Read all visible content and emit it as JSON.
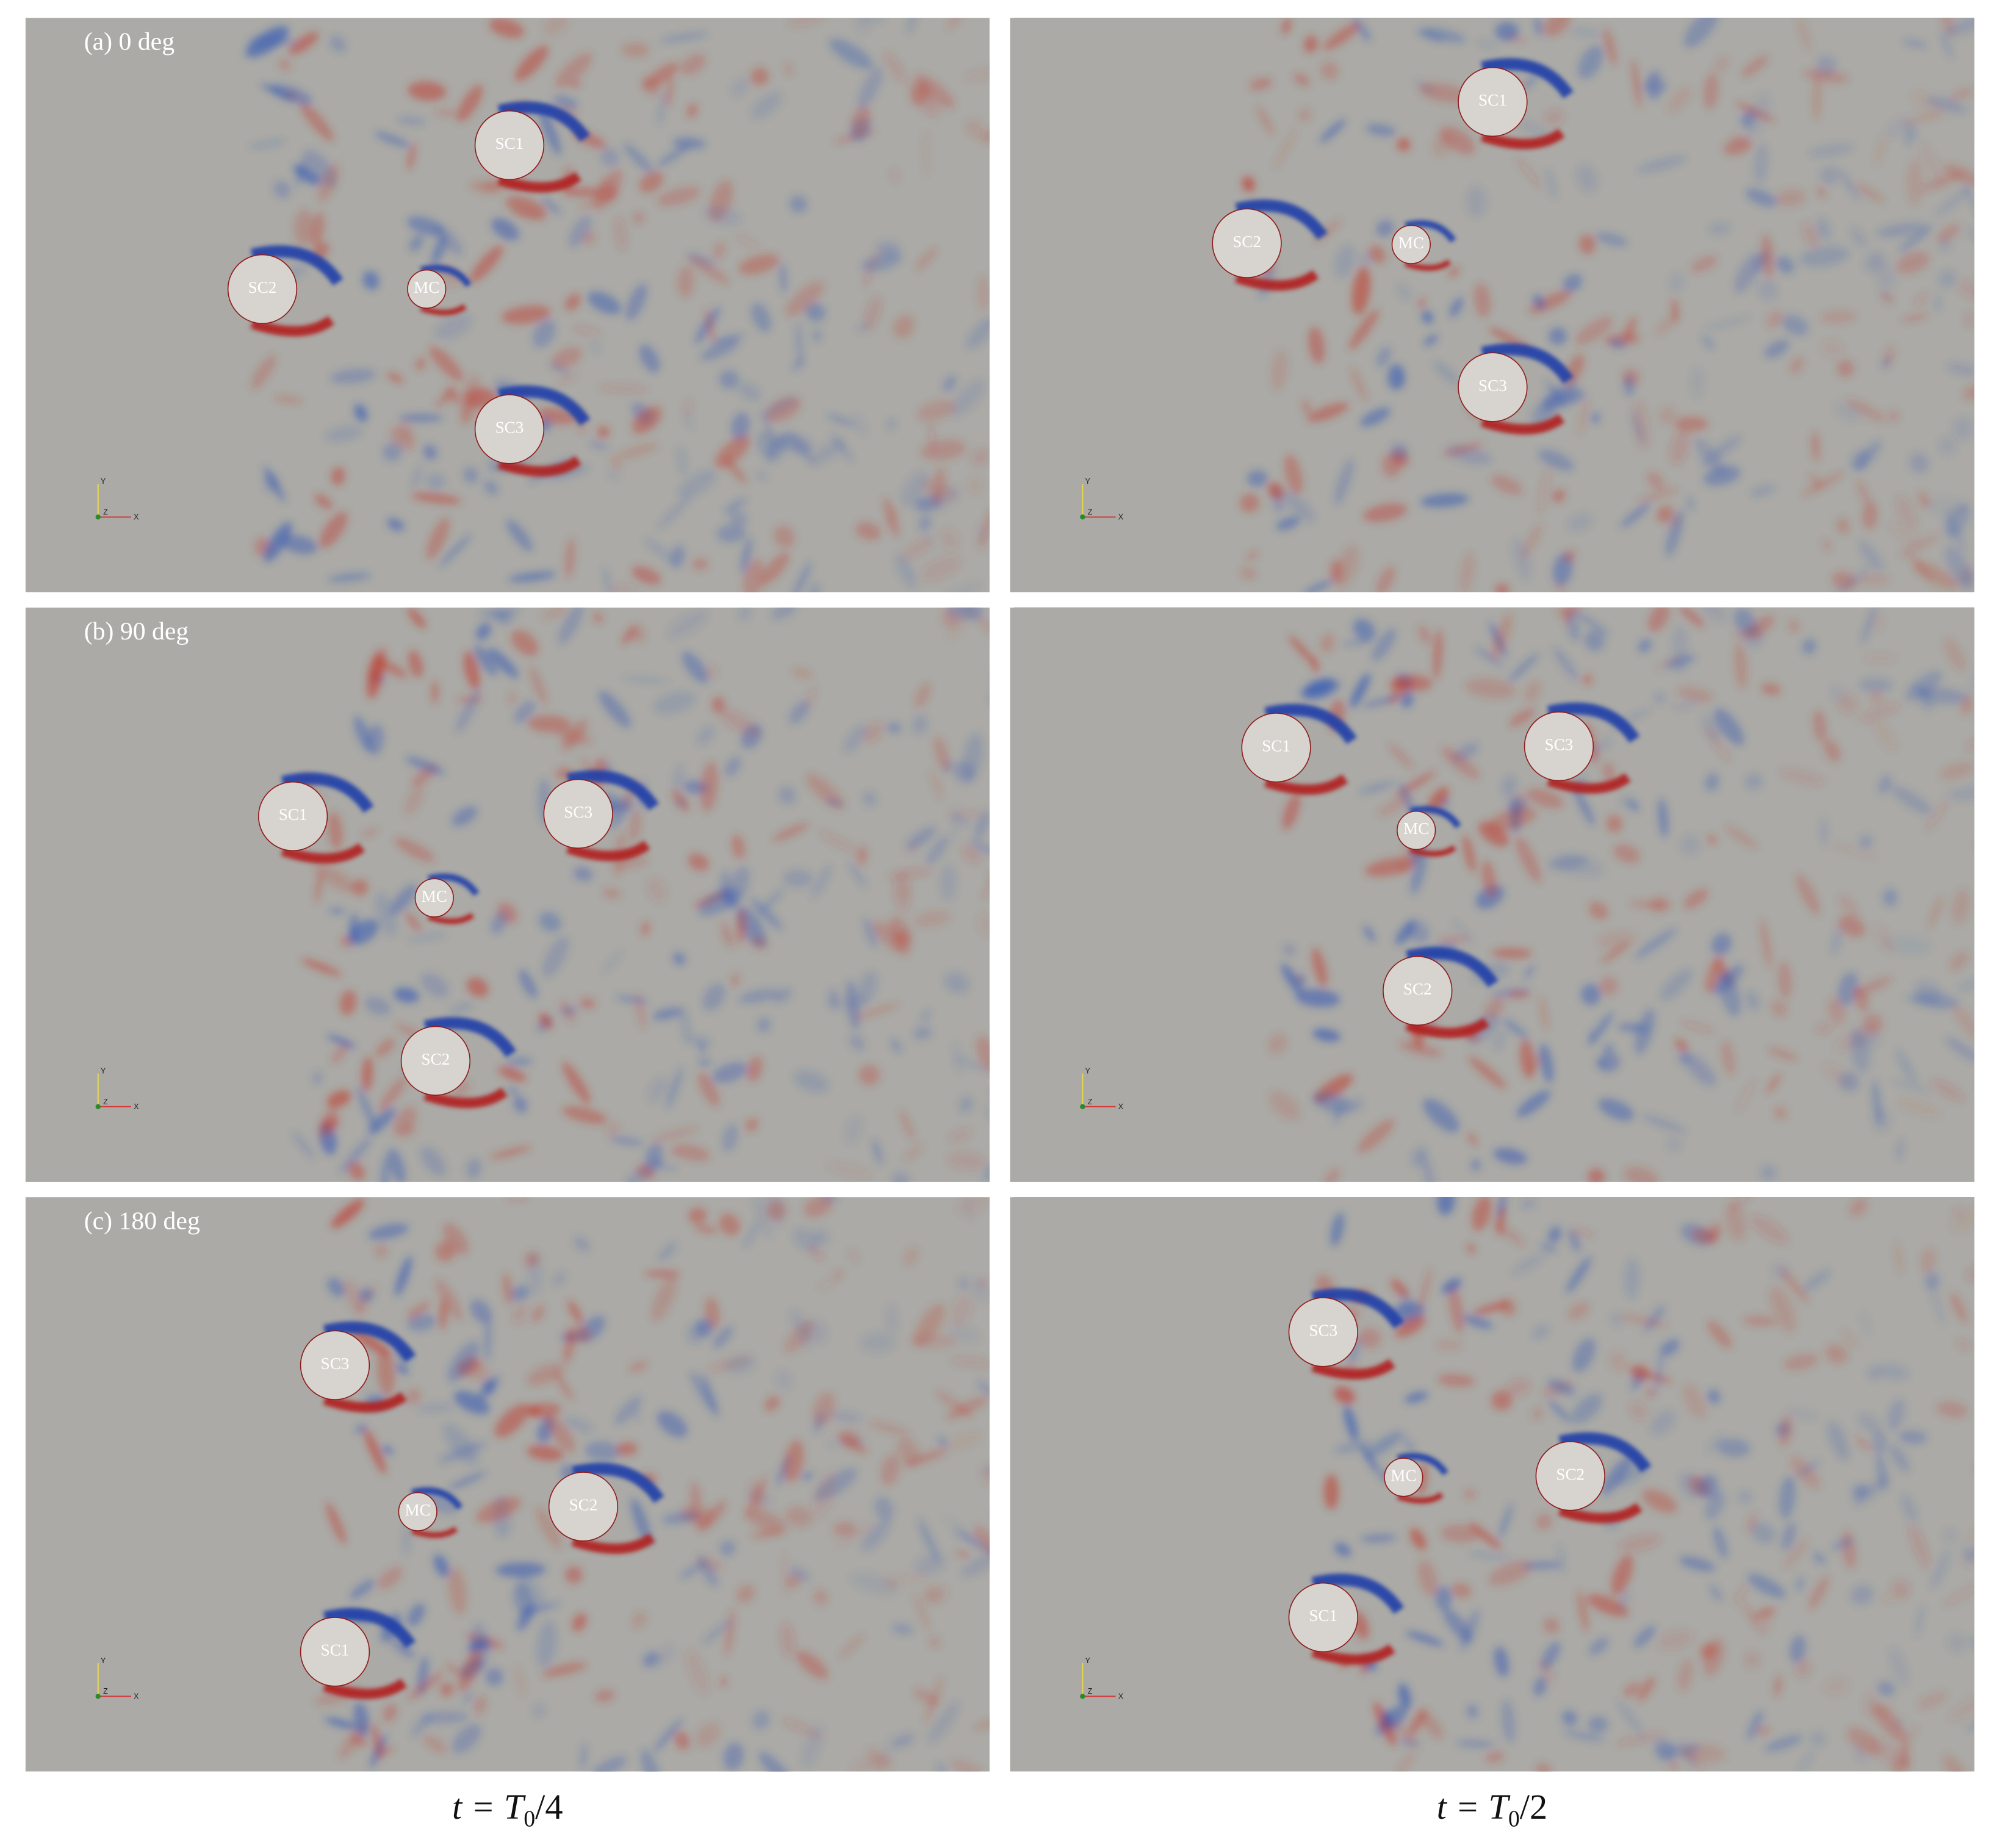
{
  "rows": [
    {
      "label": "(a) 0 deg",
      "panels": [
        {
          "cylinders": [
            "SC1",
            "SC2",
            "MC",
            "SC3"
          ]
        },
        {
          "cylinders": [
            "SC1",
            "SC2",
            "MC",
            "SC3"
          ]
        }
      ]
    },
    {
      "label": "(b) 90 deg",
      "panels": [
        {
          "cylinders": [
            "SC1",
            "SC3",
            "MC",
            "SC2"
          ]
        },
        {
          "cylinders": [
            "SC1",
            "SC3",
            "MC",
            "SC2"
          ]
        }
      ]
    },
    {
      "label": "(c) 180 deg",
      "panels": [
        {
          "cylinders": [
            "SC3",
            "MC",
            "SC2",
            "SC1"
          ]
        },
        {
          "cylinders": [
            "SC3",
            "MC",
            "SC2",
            "SC1"
          ]
        }
      ]
    }
  ],
  "triad": [
    "Y",
    "Z",
    "X"
  ],
  "captions": [
    {
      "prefix": "t = T",
      "sub": "0",
      "suffix": "/4"
    },
    {
      "prefix": "t = T",
      "sub": "0",
      "suffix": "/2"
    }
  ]
}
